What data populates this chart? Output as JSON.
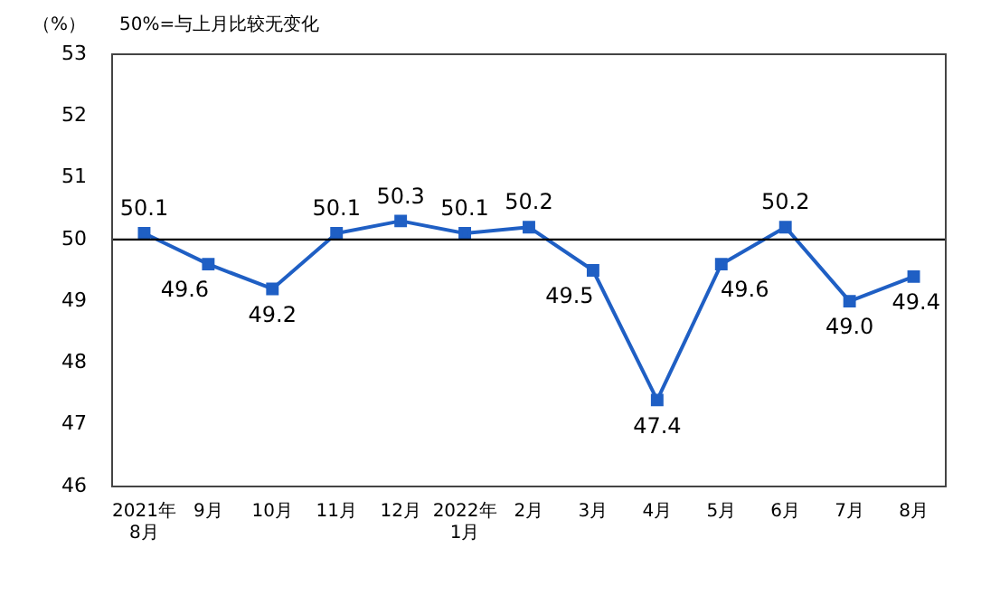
{
  "chart_data": {
    "type": "line",
    "ylabel": "（%）",
    "annotations": [
      "50%=与上月比较无变化"
    ],
    "categories": [
      "2021年\n8月",
      "9月",
      "10月",
      "11月",
      "12月",
      "2022年\n1月",
      "2月",
      "3月",
      "4月",
      "5月",
      "6月",
      "7月",
      "8月"
    ],
    "series": [
      {
        "color": "#1f5fc4",
        "values": [
          50.1,
          49.6,
          49.2,
          50.1,
          50.3,
          50.1,
          50.2,
          49.5,
          47.4,
          49.6,
          50.2,
          49.0,
          49.4
        ],
        "value_labels": [
          "50.1",
          "49.6",
          "49.2",
          "50.1",
          "50.3",
          "50.1",
          "50.2",
          "49.5",
          "47.4",
          "49.6",
          "50.2",
          "49.0",
          "49.4"
        ]
      }
    ],
    "ylim": [
      46,
      53
    ],
    "yticks": [
      46,
      47,
      48,
      49,
      50,
      51,
      52,
      53
    ],
    "grid": false,
    "legend": false,
    "marker": "square",
    "line_style": "solid",
    "ref_lines": [
      {
        "axis": "y",
        "value": 50,
        "color": "#000000"
      }
    ]
  }
}
